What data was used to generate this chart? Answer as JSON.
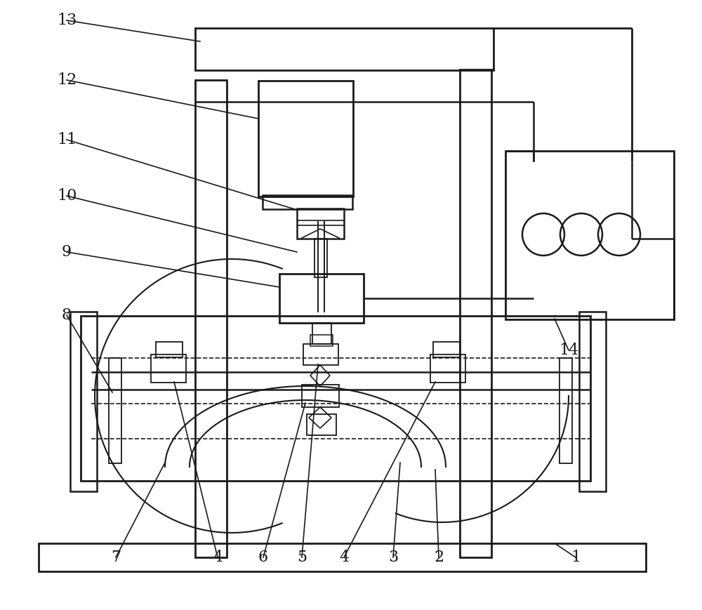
{
  "bg_color": "#ffffff",
  "lc": "#1a1a1a",
  "lw_main": 1.8,
  "lw_thin": 1.3,
  "lw_dash": 1.2,
  "label_fs": 16,
  "fig_width": 10.0,
  "fig_height": 8.69
}
